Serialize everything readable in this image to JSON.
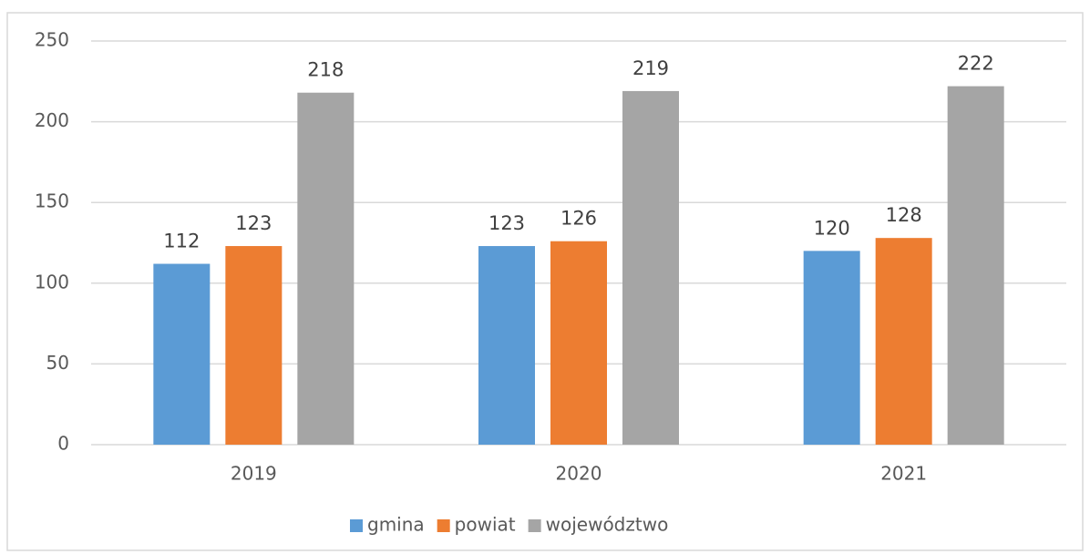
{
  "chart_data": {
    "type": "bar",
    "categories": [
      "2019",
      "2020",
      "2021"
    ],
    "series": [
      {
        "name": "gmina",
        "color": "#5b9bd5",
        "values": [
          112,
          123,
          120
        ]
      },
      {
        "name": "powiat",
        "color": "#ed7d31",
        "values": [
          123,
          126,
          128
        ]
      },
      {
        "name": "województwo",
        "color": "#a5a5a5",
        "values": [
          218,
          219,
          222
        ]
      }
    ],
    "ylim": [
      0,
      250
    ],
    "yticks": [
      0,
      50,
      100,
      150,
      200,
      250
    ],
    "grid": true,
    "legend": "bottom"
  }
}
